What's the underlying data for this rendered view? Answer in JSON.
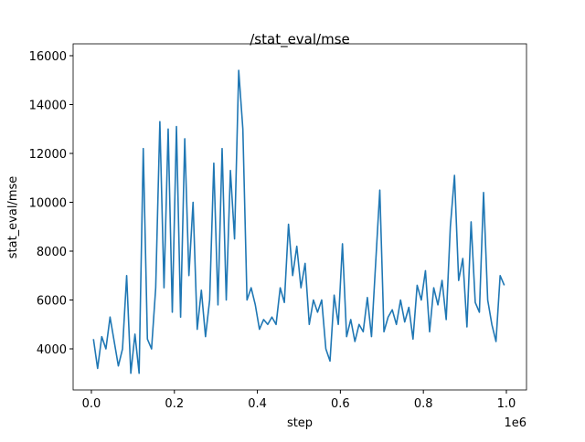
{
  "chart_data": {
    "type": "line",
    "title": "/stat_eval/mse",
    "x_label": "step",
    "y_label": "stat_eval/mse",
    "x_offset_label": "1e6",
    "x": [
      5000,
      15000,
      25000,
      35000,
      45000,
      55000,
      65000,
      75000,
      85000,
      95000,
      105000,
      115000,
      125000,
      135000,
      145000,
      155000,
      165000,
      175000,
      185000,
      195000,
      205000,
      215000,
      225000,
      235000,
      245000,
      255000,
      265000,
      275000,
      285000,
      295000,
      305000,
      315000,
      325000,
      335000,
      345000,
      355000,
      365000,
      375000,
      385000,
      395000,
      405000,
      415000,
      425000,
      435000,
      445000,
      455000,
      465000,
      475000,
      485000,
      495000,
      505000,
      515000,
      525000,
      535000,
      545000,
      555000,
      565000,
      575000,
      585000,
      595000,
      605000,
      615000,
      625000,
      635000,
      645000,
      655000,
      665000,
      675000,
      685000,
      695000,
      705000,
      715000,
      725000,
      735000,
      745000,
      755000,
      765000,
      775000,
      785000,
      795000,
      805000,
      815000,
      825000,
      835000,
      845000,
      855000,
      865000,
      875000,
      885000,
      895000,
      905000,
      915000,
      925000,
      935000,
      945000,
      955000,
      965000,
      975000,
      985000,
      995000
    ],
    "series": [
      {
        "name": "stat_eval/mse",
        "color": "#1f77b4",
        "values": [
          4400,
          3200,
          4500,
          4000,
          5300,
          4300,
          3300,
          4000,
          7000,
          3000,
          4600,
          3000,
          12200,
          4400,
          4000,
          6500,
          13300,
          6500,
          13000,
          5500,
          13100,
          5300,
          12600,
          7000,
          10000,
          4800,
          6400,
          4500,
          6000,
          11600,
          5800,
          12200,
          6000,
          11300,
          8500,
          15400,
          13000,
          6000,
          6500,
          5800,
          4800,
          5200,
          5000,
          5300,
          5000,
          6500,
          5900,
          9100,
          7000,
          8200,
          6500,
          7500,
          5000,
          6000,
          5500,
          6000,
          4000,
          3500,
          6200,
          5000,
          8300,
          4500,
          5200,
          4300,
          5000,
          4700,
          6100,
          4500,
          7500,
          10500,
          4700,
          5300,
          5600,
          5000,
          6000,
          5100,
          5700,
          4400,
          6600,
          6000,
          7200,
          4700,
          6500,
          5800,
          6800,
          5200,
          9000,
          11100,
          6800,
          7700,
          4900,
          9200,
          5900,
          5500,
          10400,
          6000,
          5000,
          4300,
          7000,
          6600
        ]
      }
    ],
    "xlim": [
      -44000,
      1048500
    ],
    "ylim": [
      2318,
      16486
    ],
    "xticks": [
      {
        "value": 0,
        "label": "0.0"
      },
      {
        "value": 200000,
        "label": "0.2"
      },
      {
        "value": 400000,
        "label": "0.4"
      },
      {
        "value": 600000,
        "label": "0.6"
      },
      {
        "value": 800000,
        "label": "0.8"
      },
      {
        "value": 1000000,
        "label": "1.0"
      }
    ],
    "yticks": [
      4000,
      6000,
      8000,
      10000,
      12000,
      14000,
      16000
    ]
  }
}
